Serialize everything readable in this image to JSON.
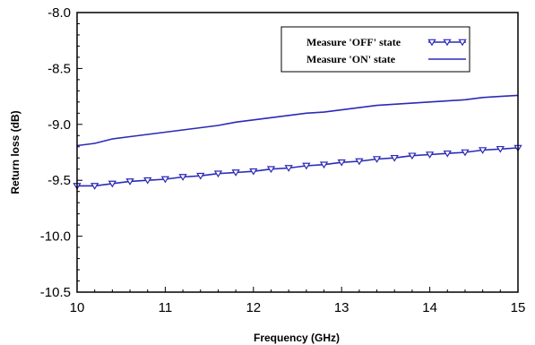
{
  "chart_data": {
    "type": "line",
    "xlabel": "Frequency (GHz)",
    "ylabel": "Return loss (dB)",
    "xlim": [
      10,
      15
    ],
    "ylim": [
      -10.5,
      -8.0
    ],
    "x_ticks": [
      "10",
      "11",
      "12",
      "13",
      "14",
      "15"
    ],
    "y_ticks": [
      "-8.0",
      "-8.5",
      "-9.0",
      "-9.5",
      "-10.0",
      "-10.5"
    ],
    "legend_position": "top-right",
    "colors": {
      "series": "#2a2ab8",
      "axis": "#000000"
    },
    "series": [
      {
        "name": "Measure 'OFF' state",
        "marker": "triangle-down",
        "x": [
          10.0,
          10.2,
          10.4,
          10.6,
          10.8,
          11.0,
          11.2,
          11.4,
          11.6,
          11.8,
          12.0,
          12.2,
          12.4,
          12.6,
          12.8,
          13.0,
          13.2,
          13.4,
          13.6,
          13.8,
          14.0,
          14.2,
          14.4,
          14.6,
          14.8,
          15.0
        ],
        "y": [
          -9.55,
          -9.55,
          -9.53,
          -9.51,
          -9.5,
          -9.49,
          -9.47,
          -9.46,
          -9.44,
          -9.43,
          -9.42,
          -9.4,
          -9.39,
          -9.37,
          -9.36,
          -9.34,
          -9.33,
          -9.31,
          -9.3,
          -9.28,
          -9.27,
          -9.26,
          -9.25,
          -9.23,
          -9.22,
          -9.21
        ]
      },
      {
        "name": "Measure 'ON' state",
        "marker": "none",
        "x": [
          10.0,
          10.2,
          10.4,
          10.6,
          10.8,
          11.0,
          11.2,
          11.4,
          11.6,
          11.8,
          12.0,
          12.2,
          12.4,
          12.6,
          12.8,
          13.0,
          13.2,
          13.4,
          13.6,
          13.8,
          14.0,
          14.2,
          14.4,
          14.6,
          14.8,
          15.0
        ],
        "y": [
          -9.19,
          -9.17,
          -9.13,
          -9.11,
          -9.09,
          -9.07,
          -9.05,
          -9.03,
          -9.01,
          -8.98,
          -8.96,
          -8.94,
          -8.92,
          -8.9,
          -8.89,
          -8.87,
          -8.85,
          -8.83,
          -8.82,
          -8.81,
          -8.8,
          -8.79,
          -8.78,
          -8.76,
          -8.75,
          -8.74
        ]
      }
    ]
  }
}
